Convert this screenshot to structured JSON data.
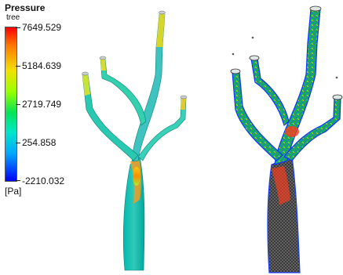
{
  "legend": {
    "title": "Pressure",
    "subtitle": "tree",
    "unit": "[Pa]",
    "ticks": [
      "7649.529",
      "5184.639",
      "2719.749",
      "254.858",
      "-2210.032"
    ]
  },
  "colors": {
    "max": "#ff0000",
    "high": "#f2e000",
    "mid": "#00e35a",
    "low": "#00d6e6",
    "min": "#0000ff",
    "mesh_line": "#2a2a2a"
  }
}
